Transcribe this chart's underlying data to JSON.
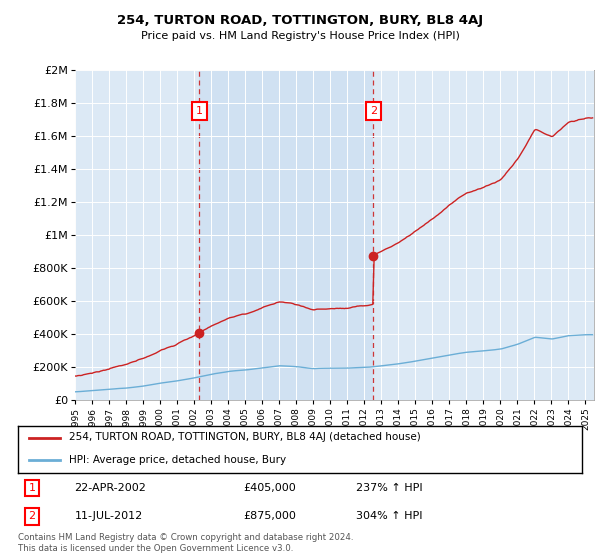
{
  "title": "254, TURTON ROAD, TOTTINGTON, BURY, BL8 4AJ",
  "subtitle": "Price paid vs. HM Land Registry's House Price Index (HPI)",
  "legend_line1": "254, TURTON ROAD, TOTTINGTON, BURY, BL8 4AJ (detached house)",
  "legend_line2": "HPI: Average price, detached house, Bury",
  "annotation1_date": "22-APR-2002",
  "annotation1_price": "£405,000",
  "annotation1_hpi": "237% ↑ HPI",
  "annotation2_date": "11-JUL-2012",
  "annotation2_price": "£875,000",
  "annotation2_hpi": "304% ↑ HPI",
  "sale1_year": 2002.31,
  "sale1_price": 405000,
  "sale2_year": 2012.53,
  "sale2_price": 875000,
  "ylim_max": 2000000,
  "xlim_min": 1995,
  "xlim_max": 2025.5,
  "plot_bg": "#dce9f5",
  "shade_color": "#c8ddf0",
  "hpi_color": "#6baed6",
  "property_color": "#cc2222",
  "footer": "Contains HM Land Registry data © Crown copyright and database right 2024.\nThis data is licensed under the Open Government Licence v3.0.",
  "hpi_key_years": [
    1995,
    1996,
    1997,
    1998,
    1999,
    2000,
    2001,
    2002,
    2003,
    2004,
    2005,
    2006,
    2007,
    2008,
    2009,
    2010,
    2011,
    2012,
    2013,
    2014,
    2015,
    2016,
    2017,
    2018,
    2019,
    2020,
    2021,
    2022,
    2023,
    2024,
    2025
  ],
  "hpi_key_vals": [
    52000,
    58000,
    65000,
    74000,
    88000,
    105000,
    120000,
    138000,
    158000,
    175000,
    185000,
    198000,
    210000,
    205000,
    192000,
    196000,
    196000,
    200000,
    210000,
    222000,
    240000,
    258000,
    278000,
    295000,
    305000,
    315000,
    345000,
    385000,
    375000,
    395000,
    400000
  ]
}
